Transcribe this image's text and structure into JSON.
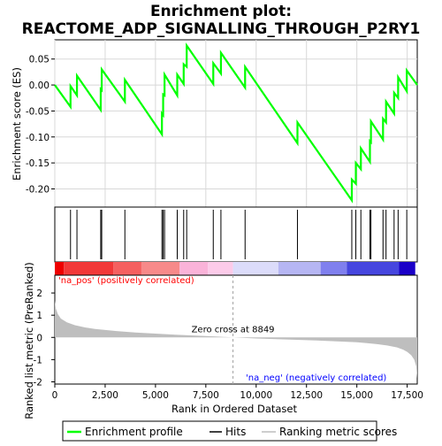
{
  "chart_data": {
    "type": "line",
    "title_line1": "Enrichment plot:",
    "title_line2": "REACTOME_ADP_SIGNALLING_THROUGH_P2RY1",
    "xlabel": "Rank in Ordered Dataset",
    "ylabel_top": "Enrichment score (ES)",
    "ylabel_bottom": "Ranked list metric (PreRanked)",
    "xlim": [
      0,
      18000
    ],
    "x_ticks": [
      0,
      2500,
      5000,
      7500,
      10000,
      12500,
      15000,
      17500
    ],
    "x_tick_labels": [
      "0",
      "2,500",
      "5,000",
      "7,500",
      "10,000",
      "12,500",
      "15,000",
      "17,500"
    ],
    "es_ylim": [
      -0.235,
      0.087
    ],
    "es_ticks": [
      0.05,
      0.0,
      -0.05,
      -0.1,
      -0.15,
      -0.2
    ],
    "es_tick_labels": [
      "0.05",
      "0.00",
      "-0.05",
      "-0.10",
      "-0.15",
      "-0.20"
    ],
    "metric_ylim": [
      -2.1,
      2.8
    ],
    "metric_ticks": [
      2,
      1,
      0,
      -1,
      -2
    ],
    "metric_tick_labels": [
      "2",
      "1",
      "0",
      "-1",
      "-2"
    ],
    "zero_cross_rank": 8849,
    "zero_cross_label": "Zero cross at 8849",
    "pos_label": "'na_pos' (positively correlated)",
    "neg_label": "'na_neg' (negatively correlated)",
    "hits": [
      780,
      1100,
      2280,
      2330,
      3480,
      5320,
      5380,
      5450,
      6080,
      6400,
      6550,
      7870,
      8250,
      9450,
      12050,
      14750,
      14950,
      15200,
      15650,
      15700,
      16300,
      16450,
      16850,
      17050,
      17480
    ],
    "es_profile": {
      "x": [
        0,
        780,
        781,
        1100,
        1101,
        2280,
        2281,
        2330,
        2331,
        3480,
        3481,
        5320,
        5321,
        5380,
        5381,
        5450,
        5451,
        6080,
        6081,
        6400,
        6401,
        6550,
        6551,
        7870,
        7871,
        8250,
        8251,
        9450,
        9451,
        12050,
        12051,
        14750,
        14751,
        14950,
        14951,
        15200,
        15201,
        15650,
        15651,
        15700,
        15701,
        16300,
        16301,
        16450,
        16451,
        16850,
        16851,
        17050,
        17051,
        17480,
        17481,
        18000
      ],
      "y": [
        0.0,
        -0.042,
        -0.002,
        -0.02,
        0.018,
        -0.048,
        -0.008,
        -0.01,
        0.03,
        -0.032,
        0.01,
        -0.095,
        -0.055,
        -0.058,
        -0.018,
        -0.02,
        0.02,
        -0.02,
        0.02,
        0.002,
        0.04,
        0.035,
        0.076,
        0.002,
        0.042,
        0.022,
        0.062,
        -0.005,
        0.035,
        -0.112,
        -0.072,
        -0.222,
        -0.182,
        -0.19,
        -0.15,
        -0.162,
        -0.122,
        -0.148,
        -0.108,
        -0.11,
        -0.07,
        -0.105,
        -0.065,
        -0.072,
        -0.032,
        -0.055,
        -0.015,
        -0.025,
        0.015,
        -0.012,
        0.028,
        0.0
      ]
    },
    "metric_profile": {
      "x": [
        0,
        50,
        150,
        300,
        600,
        1000,
        1500,
        2000,
        3000,
        4000,
        5000,
        6000,
        7000,
        8000,
        8849,
        10000,
        11000,
        12000,
        13000,
        14000,
        15000,
        15500,
        16000,
        16500,
        17000,
        17300,
        17500,
        17700,
        17850,
        17950,
        18000
      ],
      "y": [
        1.65,
        1.3,
        1.05,
        0.85,
        0.68,
        0.55,
        0.45,
        0.38,
        0.29,
        0.22,
        0.17,
        0.12,
        0.08,
        0.04,
        0.0,
        -0.05,
        -0.08,
        -0.11,
        -0.14,
        -0.18,
        -0.22,
        -0.26,
        -0.3,
        -0.36,
        -0.45,
        -0.55,
        -0.65,
        -0.8,
        -1.0,
        -1.3,
        -1.85
      ]
    },
    "legend": {
      "enrichment_profile": "Enrichment profile",
      "hits": "Hits",
      "ranking_metric": "Ranking metric scores"
    },
    "colors": {
      "es_line": "#00ff00",
      "hit_line": "#000000",
      "metric_fill": "#bebebe",
      "zero_line": "#a0a0a0",
      "pos_text": "#ff0000",
      "neg_text": "#0000ff"
    },
    "color_bar_segments": [
      {
        "x0": 0,
        "x1": 450,
        "color": "#ee0000"
      },
      {
        "x0": 450,
        "x1": 2900,
        "color": "#f23838"
      },
      {
        "x0": 2900,
        "x1": 4300,
        "color": "#f56060"
      },
      {
        "x0": 4300,
        "x1": 6200,
        "color": "#f78a8a"
      },
      {
        "x0": 6200,
        "x1": 7600,
        "color": "#fab3d9"
      },
      {
        "x0": 7600,
        "x1": 8849,
        "color": "#fccbe9"
      },
      {
        "x0": 8849,
        "x1": 11100,
        "color": "#dcdcfa"
      },
      {
        "x0": 11100,
        "x1": 13200,
        "color": "#b6b6f3"
      },
      {
        "x0": 13200,
        "x1": 14500,
        "color": "#8080ee"
      },
      {
        "x0": 14500,
        "x1": 17100,
        "color": "#4646df"
      },
      {
        "x0": 17100,
        "x1": 17900,
        "color": "#1a00c8"
      }
    ]
  }
}
